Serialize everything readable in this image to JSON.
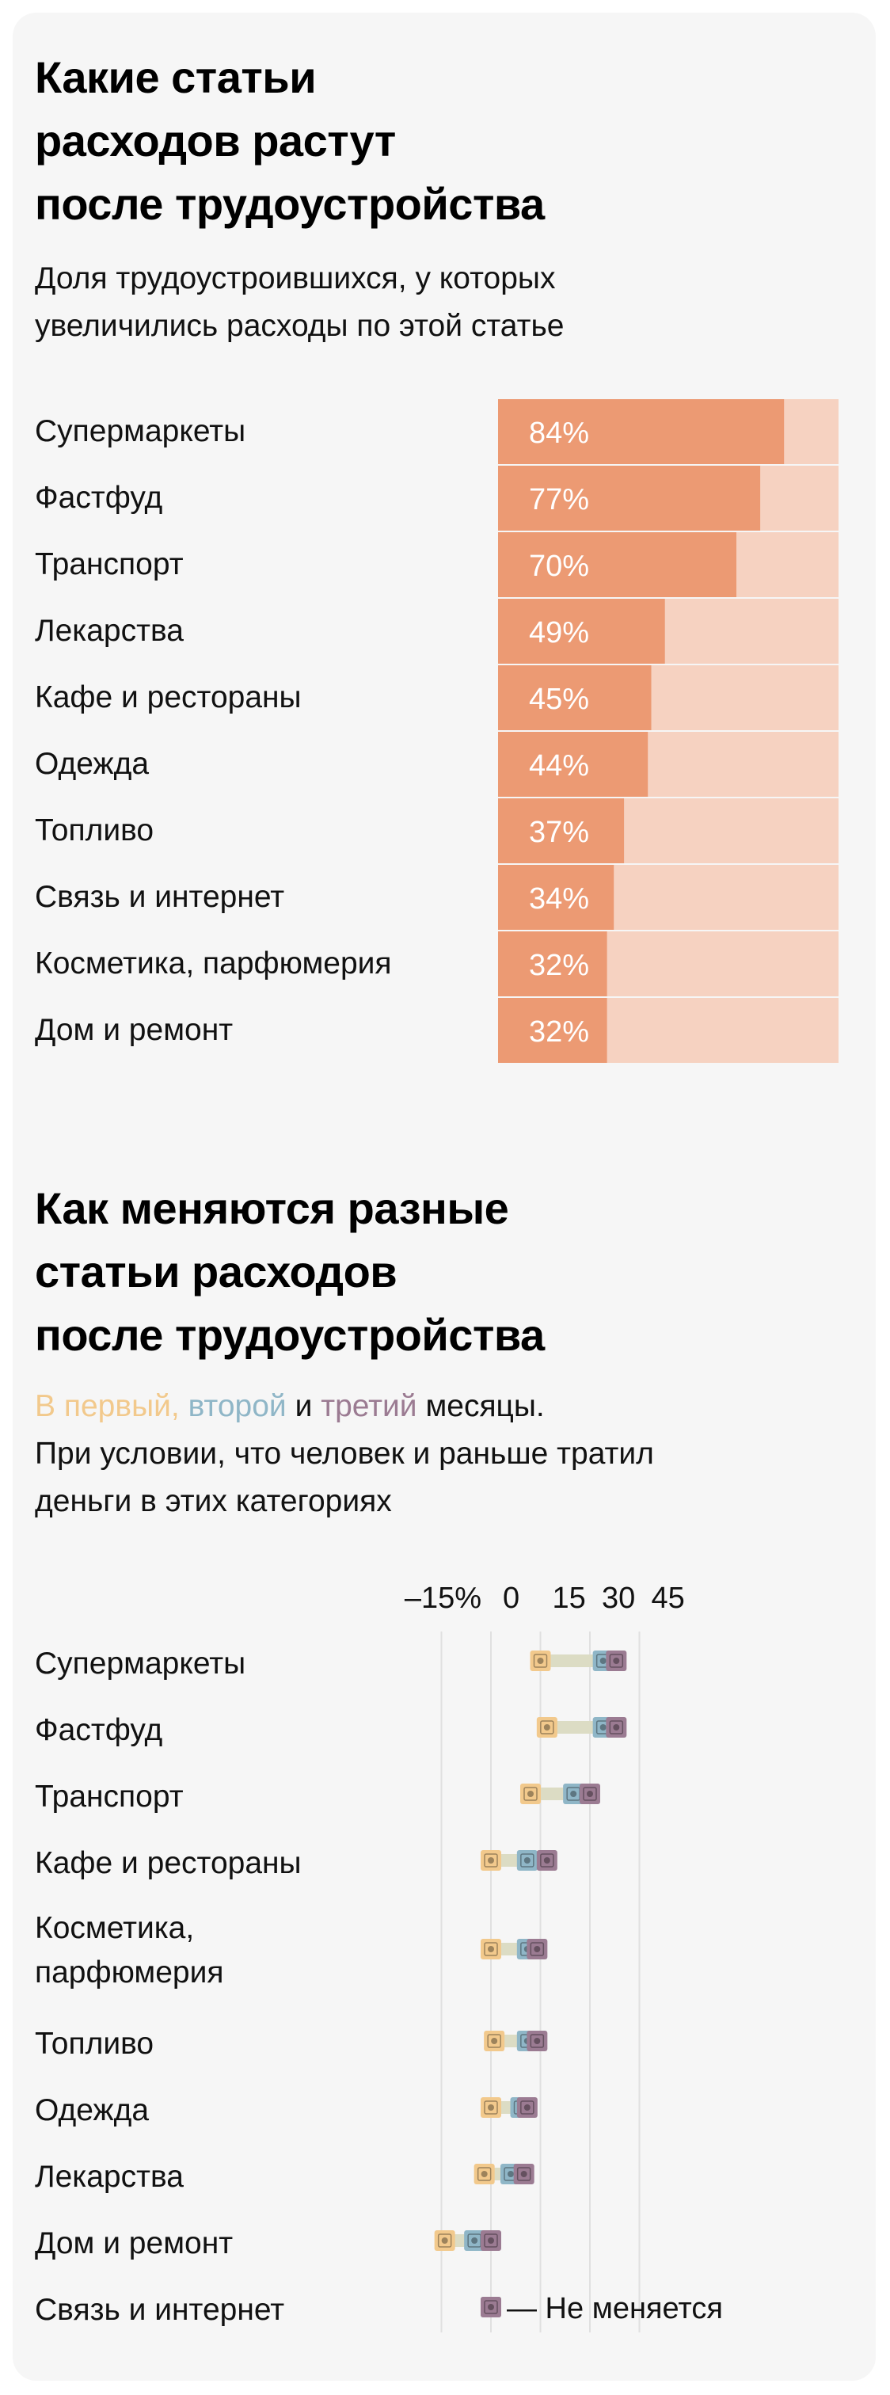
{
  "chart1": {
    "title_lines": [
      "Какие статьи",
      "расходов растут",
      "после трудоустройства"
    ],
    "subtitle_lines": [
      "Доля трудоустроившихся, у которых",
      "увеличились расходы по этой статье"
    ],
    "colors": {
      "bar": "#ec9a73",
      "background": "#f6d2c1",
      "label": "#ffffff"
    },
    "chart_data": {
      "type": "bar",
      "orientation": "horizontal",
      "stacked_to": 100,
      "categories": [
        "Супермаркеты",
        "Фастфуд",
        "Транспорт",
        "Лекарства",
        "Кафе и рестораны",
        "Одежда",
        "Топливо",
        "Связь и интернет",
        "Косметика, парфюмерия",
        "Дом и ремонт"
      ],
      "values": [
        84,
        77,
        70,
        49,
        45,
        44,
        37,
        34,
        32,
        32
      ],
      "value_labels": [
        "84%",
        "77%",
        "70%",
        "49%",
        "45%",
        "44%",
        "37%",
        "34%",
        "32%",
        "32%"
      ],
      "xlim": [
        0,
        100
      ]
    }
  },
  "chart2": {
    "title_lines": [
      "Как меняются разные",
      "статьи расходов",
      "после трудоустройства"
    ],
    "subtitle": {
      "first": "В первый,",
      "second": "второй",
      "and": "и",
      "third": "третий",
      "rest": "месяцы.",
      "line2": "При условии, что человек и раньше тратил",
      "line3": "деньги в этих категориях"
    },
    "legend_note": "— Не меняется",
    "colors": {
      "month1": "#f2c98c",
      "month2": "#8fb6c7",
      "month3": "#9b7b92",
      "range": "#dcdcc4",
      "grid": "#e0e0e0"
    },
    "chart_data": {
      "type": "dot-range",
      "x_ticks": [
        "–15%",
        "0",
        "15",
        "30",
        "45"
      ],
      "x_tick_values": [
        -15,
        0,
        15,
        30,
        45
      ],
      "xlim": [
        -20,
        50
      ],
      "series": [
        {
          "name": "В первый",
          "color": "#f2c98c"
        },
        {
          "name": "второй",
          "color": "#8fb6c7"
        },
        {
          "name": "третий",
          "color": "#9b7b92"
        }
      ],
      "rows": [
        {
          "label_lines": [
            "Супермаркеты"
          ],
          "values": [
            15,
            34,
            38
          ]
        },
        {
          "label_lines": [
            "Фастфуд"
          ],
          "values": [
            17,
            34,
            38
          ]
        },
        {
          "label_lines": [
            "Транспорт"
          ],
          "values": [
            12,
            25,
            30
          ]
        },
        {
          "label_lines": [
            "Кафе и рестораны"
          ],
          "values": [
            0,
            11,
            17
          ]
        },
        {
          "label_lines": [
            "Косметика,",
            "парфюмерия"
          ],
          "values": [
            0,
            11,
            14
          ]
        },
        {
          "label_lines": [
            "Топливо"
          ],
          "values": [
            1,
            11,
            14
          ]
        },
        {
          "label_lines": [
            "Одежда"
          ],
          "values": [
            0,
            9,
            11
          ]
        },
        {
          "label_lines": [
            "Лекарства"
          ],
          "values": [
            -2,
            6,
            10
          ]
        },
        {
          "label_lines": [
            "Дом и ремонт"
          ],
          "values": [
            -14,
            -5,
            0
          ]
        },
        {
          "label_lines": [
            "Связь и интернет"
          ],
          "values": [
            0,
            0,
            0
          ]
        }
      ]
    }
  }
}
